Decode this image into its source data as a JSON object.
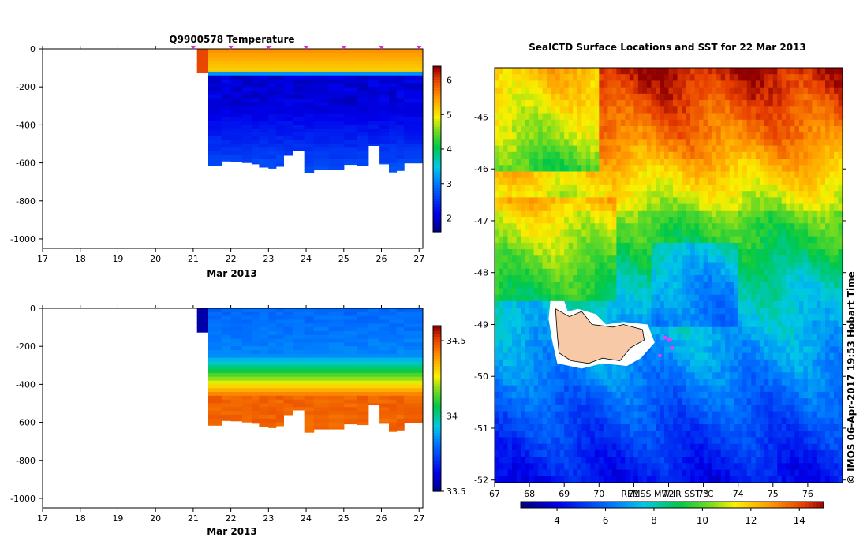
{
  "credit": "© IMOS 06-Apr-2017 19:53 Hobart Time",
  "chart_data": [
    {
      "type": "heatmap",
      "title": "Q9900578  Temperature",
      "xlabel": "Mar 2013",
      "ylabel": "",
      "xlim": [
        17,
        27.1
      ],
      "ylim": [
        -1050,
        0
      ],
      "x_ticks": [
        17,
        18,
        19,
        20,
        21,
        22,
        23,
        24,
        25,
        26,
        27
      ],
      "y_ticks": [
        0,
        -200,
        -400,
        -600,
        -800,
        -1000
      ],
      "profile_time_markers": [
        21,
        22,
        23,
        24,
        25,
        26,
        27
      ],
      "colorbar": {
        "min": 1.6,
        "max": 6.4,
        "ticks": [
          2,
          3,
          4,
          5,
          6
        ]
      },
      "columns": [
        {
          "x0": 21.1,
          "x1": 21.4,
          "bottom": -125
        },
        {
          "x0": 21.4,
          "x1": 21.75,
          "bottom": -615
        },
        {
          "x0": 21.75,
          "x1": 22.0,
          "bottom": -590
        },
        {
          "x0": 22.0,
          "x1": 22.3,
          "bottom": -592
        },
        {
          "x0": 22.3,
          "x1": 22.55,
          "bottom": -598
        },
        {
          "x0": 22.55,
          "x1": 22.75,
          "bottom": -605
        },
        {
          "x0": 22.75,
          "x1": 23.0,
          "bottom": -622
        },
        {
          "x0": 23.0,
          "x1": 23.2,
          "bottom": -628
        },
        {
          "x0": 23.2,
          "x1": 23.4,
          "bottom": -618
        },
        {
          "x0": 23.4,
          "x1": 23.65,
          "bottom": -560
        },
        {
          "x0": 23.65,
          "x1": 23.95,
          "bottom": -535
        },
        {
          "x0": 23.95,
          "x1": 24.2,
          "bottom": -652
        },
        {
          "x0": 24.2,
          "x1": 24.6,
          "bottom": -635
        },
        {
          "x0": 24.6,
          "x1": 25.0,
          "bottom": -635
        },
        {
          "x0": 25.0,
          "x1": 25.35,
          "bottom": -608
        },
        {
          "x0": 25.35,
          "x1": 25.65,
          "bottom": -612
        },
        {
          "x0": 25.65,
          "x1": 25.95,
          "bottom": -508
        },
        {
          "x0": 25.95,
          "x1": 26.2,
          "bottom": -605
        },
        {
          "x0": 26.2,
          "x1": 26.4,
          "bottom": -648
        },
        {
          "x0": 26.4,
          "x1": 26.6,
          "bottom": -640
        },
        {
          "x0": 26.6,
          "x1": 27.1,
          "bottom": -600
        }
      ],
      "profile_model": "warm surface (~5.5 °C) to ~110 m, thermocline at ~120 m, cold minimum (~1.9 °C) at 150–300 m, slight warming (~2.6 °C) with depth"
    },
    {
      "type": "heatmap",
      "title": "",
      "xlabel": "Mar 2013",
      "ylabel": "",
      "xlim": [
        17,
        27.1
      ],
      "ylim": [
        -1050,
        0
      ],
      "x_ticks": [
        17,
        18,
        19,
        20,
        21,
        22,
        23,
        24,
        25,
        26,
        27
      ],
      "y_ticks": [
        0,
        -200,
        -400,
        -600,
        -800,
        -1000
      ],
      "colorbar": {
        "min": 33.5,
        "max": 34.6,
        "ticks": [
          33.5,
          34,
          34.5
        ]
      },
      "columns": [
        {
          "x0": 21.1,
          "x1": 21.4,
          "bottom": -125
        },
        {
          "x0": 21.4,
          "x1": 21.75,
          "bottom": -615
        },
        {
          "x0": 21.75,
          "x1": 22.0,
          "bottom": -590
        },
        {
          "x0": 22.0,
          "x1": 22.3,
          "bottom": -592
        },
        {
          "x0": 22.3,
          "x1": 22.55,
          "bottom": -598
        },
        {
          "x0": 22.55,
          "x1": 22.75,
          "bottom": -605
        },
        {
          "x0": 22.75,
          "x1": 23.0,
          "bottom": -622
        },
        {
          "x0": 23.0,
          "x1": 23.2,
          "bottom": -628
        },
        {
          "x0": 23.2,
          "x1": 23.4,
          "bottom": -618
        },
        {
          "x0": 23.4,
          "x1": 23.65,
          "bottom": -560
        },
        {
          "x0": 23.65,
          "x1": 23.95,
          "bottom": -535
        },
        {
          "x0": 23.95,
          "x1": 24.2,
          "bottom": -652
        },
        {
          "x0": 24.2,
          "x1": 24.6,
          "bottom": -635
        },
        {
          "x0": 24.6,
          "x1": 25.0,
          "bottom": -635
        },
        {
          "x0": 25.0,
          "x1": 25.35,
          "bottom": -608
        },
        {
          "x0": 25.35,
          "x1": 25.65,
          "bottom": -612
        },
        {
          "x0": 25.65,
          "x1": 25.95,
          "bottom": -508
        },
        {
          "x0": 25.95,
          "x1": 26.2,
          "bottom": -605
        },
        {
          "x0": 26.2,
          "x1": 26.4,
          "bottom": -648
        },
        {
          "x0": 26.4,
          "x1": 26.6,
          "bottom": -640
        },
        {
          "x0": 26.6,
          "x1": 27.1,
          "bottom": -600
        }
      ],
      "profile_model": "fresh surface (~33.8) to ~250 m, halocline 250–450 m, saline (~34.5) at depth"
    },
    {
      "type": "heatmap",
      "title": "SealCTD Surface Locations and SST for 22 Mar 2013",
      "xlabel": "",
      "ylabel": "",
      "xlim": [
        67,
        77
      ],
      "ylim": [
        -52.05,
        -44.05
      ],
      "x_ticks": [
        67,
        68,
        69,
        70,
        71,
        72,
        73,
        74,
        75,
        76
      ],
      "y_ticks": [
        -45,
        -46,
        -47,
        -48,
        -49,
        -50,
        -51,
        -52
      ],
      "colorbar": {
        "label": "REMSS MW-IR SST °C",
        "min": 2.5,
        "max": 15,
        "ticks": [
          4,
          6,
          8,
          10,
          12,
          14
        ]
      },
      "land": "Kerguelen Islands near 69–71.5 E, 48.7–49.8 S",
      "surface_locations": [
        {
          "lon": 71.9,
          "lat": -49.25
        },
        {
          "lon": 72.0,
          "lat": -49.3
        },
        {
          "lon": 72.05,
          "lat": -49.3
        },
        {
          "lon": 72.1,
          "lat": -49.45
        },
        {
          "lon": 71.75,
          "lat": -49.6
        }
      ]
    }
  ]
}
